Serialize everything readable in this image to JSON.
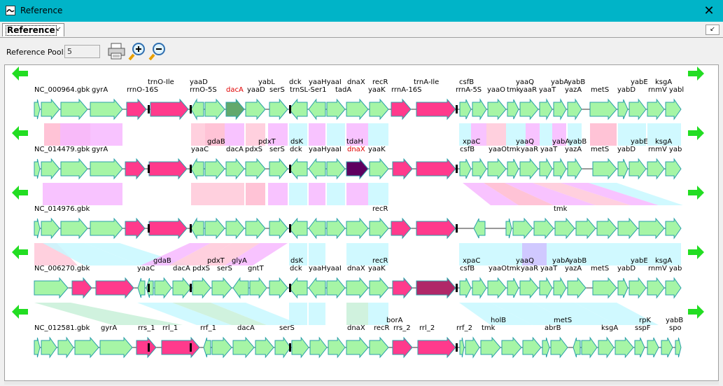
{
  "window": {
    "title": "Reference"
  },
  "tab": {
    "label": "Reference",
    "pin": "↙",
    "menu": "↙"
  },
  "toolbar": {
    "pool_label": "Reference Pool:",
    "pool_value": "5"
  },
  "colors": {
    "titlebar": "#00b4c8",
    "gene": "#a6f5a6",
    "gene_edge": "#2aa0a8",
    "rrna": "#ff3a8c",
    "dacA": "#62a86c",
    "dnaX_highlight": "#5e0060",
    "rrna_dark": "#b02868",
    "nav_arrow": "#22dd22"
  },
  "tracks": [
    {
      "name": "NC_000964.gbk",
      "labels": [
        [
          "trnO-Ile",
          210,
          1
        ],
        [
          "yaaD",
          270,
          1
        ],
        [
          "yabL",
          368,
          1
        ],
        [
          "dck",
          412,
          1
        ],
        [
          "yaaHyaaI",
          440,
          1
        ],
        [
          "dnaX",
          495,
          1
        ],
        [
          "recR",
          531,
          1
        ],
        [
          "trnA-Ile",
          590,
          1
        ],
        [
          "csfB",
          655,
          1
        ],
        [
          "yaaQ",
          736,
          1
        ],
        [
          "yabA",
          786,
          1
        ],
        [
          "yabB",
          810,
          1
        ],
        [
          "yabE",
          900,
          1
        ],
        [
          "ksgA",
          935,
          1
        ],
        [
          "gyrA",
          130,
          0
        ],
        [
          "rrnO-16S",
          180,
          0
        ],
        [
          "rrnO-5S",
          270,
          0
        ],
        [
          "dacA",
          322,
          0,
          "red"
        ],
        [
          "yaaD",
          352,
          0
        ],
        [
          "serS",
          384,
          0
        ],
        [
          "trnSL-Ser1",
          413,
          0
        ],
        [
          "tadA",
          478,
          0
        ],
        [
          "yaaK",
          525,
          0
        ],
        [
          "rrnA-16S",
          558,
          0
        ],
        [
          "rrnA-5S",
          650,
          0
        ],
        [
          "yaaO",
          695,
          0
        ],
        [
          "tmk",
          723,
          0
        ],
        [
          "yaaR",
          741,
          0
        ],
        [
          "yaaT",
          769,
          0
        ],
        [
          "yazA",
          806,
          0
        ],
        [
          "metS",
          843,
          0
        ],
        [
          "yabD",
          881,
          0
        ],
        [
          "rnmV",
          925,
          0
        ],
        [
          "yabl",
          955,
          0
        ]
      ]
    },
    {
      "name": "NC_014479.gbk",
      "labels": [
        [
          "gdaB",
          295,
          1
        ],
        [
          "pdxT",
          368,
          1
        ],
        [
          "dsK",
          414,
          1
        ],
        [
          "tdaH",
          494,
          1
        ],
        [
          "xpaC",
          660,
          1
        ],
        [
          "yaaQ",
          736,
          1
        ],
        [
          "yabA",
          788,
          1
        ],
        [
          "yabB",
          812,
          1
        ],
        [
          "yabE",
          900,
          1
        ],
        [
          "ksgA",
          935,
          1
        ],
        [
          "gyrA",
          130,
          0
        ],
        [
          "yaaC",
          272,
          0
        ],
        [
          "dacA",
          322,
          0
        ],
        [
          "pdxS",
          349,
          0
        ],
        [
          "serS",
          384,
          0
        ],
        [
          "dck",
          413,
          0
        ],
        [
          "yaaHyaaI",
          440,
          0
        ],
        [
          "dnaX",
          495,
          0,
          "red"
        ],
        [
          "yaaK",
          525,
          0
        ],
        [
          "csfB",
          656,
          0
        ],
        [
          "yaaO",
          697,
          0
        ],
        [
          "tmk",
          723,
          0
        ],
        [
          "yaaR",
          743,
          0
        ],
        [
          "yaaT",
          771,
          0
        ],
        [
          "yazA",
          806,
          0
        ],
        [
          "metS",
          843,
          0
        ],
        [
          "yabD",
          881,
          0
        ],
        [
          "rnmV",
          925,
          0
        ],
        [
          "yab",
          955,
          0
        ]
      ]
    },
    {
      "name": "NC_014976.gbk",
      "labels": [
        [
          "recR",
          531,
          0
        ],
        [
          "tmk",
          790,
          0
        ]
      ]
    },
    {
      "name": "NC_006270.gbk",
      "labels": [
        [
          "gdaB",
          218,
          1
        ],
        [
          "pdxT",
          295,
          1
        ],
        [
          "glyA",
          330,
          1
        ],
        [
          "dsK",
          414,
          1
        ],
        [
          "recR",
          531,
          1
        ],
        [
          "xpaC",
          660,
          1
        ],
        [
          "yaaQ",
          736,
          1
        ],
        [
          "yabA",
          788,
          1
        ],
        [
          "yabB",
          812,
          1
        ],
        [
          "yabE",
          900,
          1
        ],
        [
          "ksgA",
          935,
          1
        ],
        [
          "yaaC",
          195,
          0
        ],
        [
          "dacA",
          246,
          0
        ],
        [
          "pdxS",
          274,
          0
        ],
        [
          "serS",
          309,
          0
        ],
        [
          "gntT",
          353,
          0
        ],
        [
          "dck",
          413,
          0
        ],
        [
          "yaaHyaaI",
          440,
          0
        ],
        [
          "dnaX",
          495,
          0
        ],
        [
          "yaaK",
          525,
          0
        ],
        [
          "csfB",
          656,
          0
        ],
        [
          "yaaO",
          697,
          0
        ],
        [
          "tmk",
          723,
          0
        ],
        [
          "yaaR",
          743,
          0
        ],
        [
          "yaaT",
          771,
          0
        ],
        [
          "yazA",
          806,
          0
        ],
        [
          "metS",
          843,
          0
        ],
        [
          "yabD",
          881,
          0
        ],
        [
          "rnmV",
          925,
          0
        ],
        [
          "yab",
          955,
          0
        ]
      ]
    },
    {
      "name": "NC_012581.gbk",
      "labels": [
        [
          "borA",
          551,
          1
        ],
        [
          "holB",
          700,
          1
        ],
        [
          "metS",
          790,
          1
        ],
        [
          "rpK",
          912,
          1
        ],
        [
          "yabB",
          950,
          1
        ],
        [
          "gyrA",
          143,
          0
        ],
        [
          "rrs_1",
          196,
          0
        ],
        [
          "rrl_1",
          231,
          0
        ],
        [
          "rrf_1",
          285,
          0
        ],
        [
          "dacA",
          338,
          0
        ],
        [
          "serS",
          398,
          0
        ],
        [
          "dnaX",
          495,
          0
        ],
        [
          "recR",
          533,
          0
        ],
        [
          "rrs_2",
          561,
          0
        ],
        [
          "rrl_2",
          598,
          0
        ],
        [
          "rrf_2",
          651,
          0
        ],
        [
          "tmk",
          687,
          0
        ],
        [
          "abrB",
          777,
          0
        ],
        [
          "ksgA",
          858,
          0
        ],
        [
          "sspF",
          906,
          0
        ],
        [
          "spo",
          955,
          0
        ]
      ]
    }
  ]
}
